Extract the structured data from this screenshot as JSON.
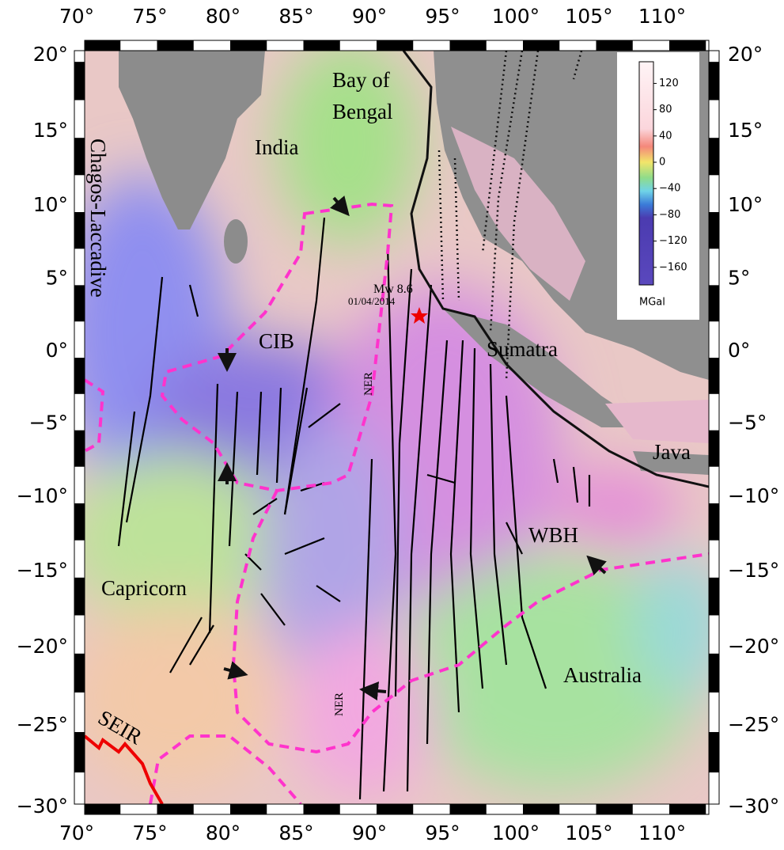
{
  "map": {
    "lon_ticks": [
      {
        "value": 70,
        "label": "70°"
      },
      {
        "value": 75,
        "label": "75°"
      },
      {
        "value": 80,
        "label": "80°"
      },
      {
        "value": 85,
        "label": "85°"
      },
      {
        "value": 90,
        "label": "90°"
      },
      {
        "value": 95,
        "label": "95°"
      },
      {
        "value": 100,
        "label": "100°"
      },
      {
        "value": 105,
        "label": "105°"
      },
      {
        "value": 110,
        "label": "110°"
      }
    ],
    "lat_ticks": [
      {
        "value": 20,
        "label": "20°"
      },
      {
        "value": 15,
        "label": "15°"
      },
      {
        "value": 10,
        "label": "10°"
      },
      {
        "value": 5,
        "label": "5°"
      },
      {
        "value": 0,
        "label": "0°"
      },
      {
        "value": -5,
        "label": "−5°"
      },
      {
        "value": -10,
        "label": "−10°"
      },
      {
        "value": -15,
        "label": "−15°"
      },
      {
        "value": -20,
        "label": "−20°"
      },
      {
        "value": -25,
        "label": "−25°"
      },
      {
        "value": -30,
        "label": "−30°"
      }
    ],
    "labels": {
      "bay_line1": "Bay of",
      "bay_line2": "Bengal",
      "india": "India",
      "chagos": "Chagos-Laccadive",
      "cib": "CIB",
      "ner_north": "NER",
      "ner_south": "NER",
      "quake_mag": "Mw 8.6",
      "quake_date": "01/04/2014",
      "sumatra": "Sumatra",
      "java": "Java",
      "wbh": "WBH",
      "capricorn": "Capricorn",
      "australia": "Australia",
      "seir": "SEIR"
    },
    "colorbar": {
      "ticks": [
        120,
        80,
        40,
        0,
        {
          "value": -40,
          "label": "−40"
        },
        {
          "value": -80,
          "label": "−80"
        },
        {
          "value": -120,
          "label": "−120"
        },
        {
          "value": -160,
          "label": "−160"
        }
      ],
      "unit": "MGal"
    }
  }
}
